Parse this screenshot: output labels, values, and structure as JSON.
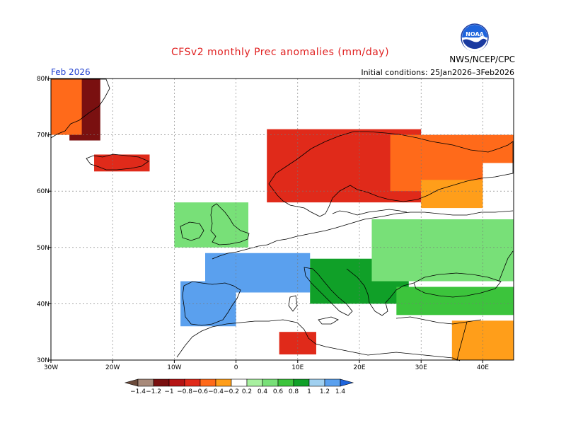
{
  "title": "CFSv2 monthly Prec anomalies (mm/day)",
  "title_color": "#e02020",
  "month_label": "Feb 2026",
  "month_color": "#2040d0",
  "initial_conditions": "Initial conditions: 25Jan2026–3Feb2026",
  "agency": "NWS/NCEP/CPC",
  "logo_text": "NOAA",
  "lat_labels": [
    "80N",
    "70N",
    "60N",
    "50N",
    "40N",
    "30N"
  ],
  "lon_labels": [
    "30W",
    "20W",
    "10W",
    "0",
    "10E",
    "20E",
    "30E",
    "40E"
  ],
  "colorbar": {
    "ticks": [
      "−1.4",
      "−1.2",
      "−1",
      "−0.8",
      "−0.6",
      "−0.4",
      "−0.2",
      "0.2",
      "0.4",
      "0.6",
      "0.8",
      "1",
      "1.2",
      "1.4"
    ],
    "colors": [
      "#6b4a3a",
      "#a88a7a",
      "#7a1010",
      "#b41414",
      "#e02a1a",
      "#ff6a1a",
      "#ff9e1a",
      "#ffffff",
      "#a8f0a0",
      "#78e078",
      "#3cc43c",
      "#10a028",
      "#a0d0f0",
      "#5aa0ee",
      "#1e64dc"
    ]
  },
  "chart_data": {
    "type": "heatmap",
    "title": "CFSv2 monthly Prec anomalies (mm/day)",
    "xlim": [
      -30,
      45
    ],
    "ylim": [
      30,
      80
    ],
    "x_ticks": [
      "30W",
      "20W",
      "10W",
      "0",
      "10E",
      "20E",
      "30E",
      "40E"
    ],
    "y_ticks": [
      "30N",
      "40N",
      "50N",
      "60N",
      "70N",
      "80N"
    ],
    "regions": [
      {
        "lon": [
          -27,
          -22
        ],
        "lat": [
          69,
          80
        ],
        "anomaly": -1.2
      },
      {
        "lon": [
          -30,
          -25
        ],
        "lat": [
          70,
          80
        ],
        "anomaly": -0.6
      },
      {
        "lon": [
          -23,
          -14
        ],
        "lat": [
          63.5,
          66.5
        ],
        "anomaly": -0.8
      },
      {
        "lon": [
          5,
          30
        ],
        "lat": [
          58,
          71
        ],
        "anomaly": -0.8
      },
      {
        "lon": [
          25,
          45
        ],
        "lat": [
          60,
          70
        ],
        "anomaly": -0.6
      },
      {
        "lon": [
          30,
          45
        ],
        "lat": [
          57,
          62
        ],
        "anomaly": -0.4
      },
      {
        "lon": [
          -10,
          2
        ],
        "lat": [
          50,
          58
        ],
        "anomaly": 0.4
      },
      {
        "lon": [
          -5,
          12
        ],
        "lat": [
          42,
          49
        ],
        "anomaly": 1.2
      },
      {
        "lon": [
          -9,
          0
        ],
        "lat": [
          36,
          44
        ],
        "anomaly": 1.2
      },
      {
        "lon": [
          12,
          28
        ],
        "lat": [
          40,
          48
        ],
        "anomaly": 0.8
      },
      {
        "lon": [
          22,
          45
        ],
        "lat": [
          44,
          55
        ],
        "anomaly": 0.4
      },
      {
        "lon": [
          26,
          45
        ],
        "lat": [
          38,
          43
        ],
        "anomaly": 0.6
      },
      {
        "lon": [
          -10,
          0
        ],
        "lat": [
          30,
          34
        ],
        "anomaly": -0.2
      },
      {
        "lon": [
          7,
          13
        ],
        "lat": [
          31,
          35
        ],
        "anomaly": -0.8
      },
      {
        "lon": [
          35,
          45
        ],
        "lat": [
          30,
          37
        ],
        "anomaly": -0.4
      },
      {
        "lon": [
          40,
          45
        ],
        "lat": [
          55,
          65
        ],
        "anomaly": -0.2
      }
    ]
  }
}
